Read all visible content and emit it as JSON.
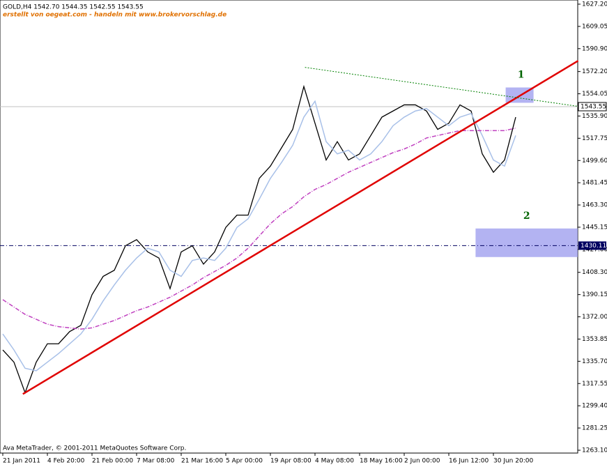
{
  "chart_data": {
    "type": "line",
    "title": "GOLD,H4  1542.70 1544.35 1542.55 1543.55",
    "subtitle": "erstellt von oegeat.com - handeln mit www.brokervorschlag.de",
    "footer": "Ava MetaTrader, © 2001-2011 MetaQuotes Software Corp.",
    "categories": [
      "21 Jan 2011",
      null,
      null,
      null,
      "4 Feb 20:00",
      null,
      null,
      null,
      "21 Feb 00:00",
      null,
      null,
      null,
      "7 Mar 08:00",
      null,
      null,
      null,
      "21 Mar 16:00",
      null,
      null,
      null,
      "5 Apr 00:00",
      null,
      null,
      null,
      "19 Apr 08:00",
      null,
      null,
      null,
      "4 May 08:00",
      null,
      null,
      null,
      "18 May 16:00",
      null,
      null,
      null,
      "2 Jun 00:00",
      null,
      null,
      null,
      "16 Jun 12:00",
      null,
      null,
      null,
      "30 Jun 20:00",
      null,
      null
    ],
    "series": [
      {
        "color": "#000000",
        "values": [
          1345,
          1335,
          1310,
          1335,
          1350,
          1350,
          1360,
          1365,
          1390,
          1405,
          1410,
          1430,
          1435,
          1425,
          1420,
          1395,
          1425,
          1430,
          1415,
          1425,
          1445,
          1455,
          1455,
          1485,
          1495,
          1510,
          1525,
          1560,
          1530,
          1500,
          1515,
          1500,
          1505,
          1520,
          1535,
          1540,
          1545,
          1545,
          1540,
          1525,
          1530,
          1545,
          1540,
          1505,
          1490,
          1500,
          1535
        ]
      },
      {
        "color": "#a8c0e8",
        "values": [
          1358,
          1345,
          1330,
          1328,
          1335,
          1342,
          1350,
          1358,
          1370,
          1385,
          1398,
          1410,
          1420,
          1428,
          1425,
          1410,
          1405,
          1418,
          1420,
          1418,
          1428,
          1445,
          1452,
          1468,
          1485,
          1498,
          1512,
          1535,
          1548,
          1515,
          1505,
          1508,
          1500,
          1505,
          1515,
          1528,
          1535,
          1540,
          1542,
          1535,
          1528,
          1535,
          1538,
          1520,
          1500,
          1495,
          1520
        ]
      },
      {
        "color": "#c040c0",
        "values": [
          1386,
          1380,
          1374,
          1370,
          1366,
          1364,
          1363,
          1362,
          1363,
          1366,
          1369,
          1373,
          1377,
          1380,
          1384,
          1388,
          1393,
          1398,
          1404,
          1409,
          1414,
          1420,
          1428,
          1438,
          1448,
          1456,
          1462,
          1470,
          1476,
          1480,
          1485,
          1490,
          1494,
          1498,
          1502,
          1506,
          1509,
          1513,
          1518,
          1520,
          1522,
          1524,
          1524,
          1524,
          1524,
          1524,
          1526
        ]
      }
    ],
    "trendlines": [
      {
        "color": "#e00000",
        "x": [
          1.8,
          51.6
        ],
        "values": [
          1309,
          1581
        ]
      },
      {
        "color": "#008000",
        "x": [
          27.1,
          51.6
        ],
        "values": [
          1575.6,
          1543.8
        ]
      }
    ],
    "zones": [
      {
        "label": "1",
        "color": "#9999ee",
        "x": [
          45.1,
          47.6
        ],
        "values": [
          1559.2,
          1546.7
        ]
      },
      {
        "label": "2",
        "color": "#9999ee",
        "x": [
          42.4,
          51.6
        ],
        "values": [
          1444.1,
          1420.8
        ]
      }
    ],
    "current_price": 1543.55,
    "level": 1430.11,
    "ylim": [
      1260.8,
      1630.6
    ],
    "yticks": [
      {
        "value": 1627.2,
        "label": "1627.20"
      },
      {
        "value": 1609.05,
        "label": "1609.05"
      },
      {
        "value": 1590.9,
        "label": "1590.90"
      },
      {
        "value": 1572.2,
        "label": "1572.20"
      },
      {
        "value": 1554.05,
        "label": "1554.05"
      },
      {
        "value": 1535.9,
        "label": "1535.90"
      },
      {
        "value": 1517.75,
        "label": "1517.75"
      },
      {
        "value": 1499.6,
        "label": "1499.60"
      },
      {
        "value": 1481.45,
        "label": "1481.45"
      },
      {
        "value": 1463.3,
        "label": "1463.30"
      },
      {
        "value": 1445.15,
        "label": "1445.15"
      },
      {
        "value": 1427.0,
        "label": "1427.00"
      },
      {
        "value": 1408.3,
        "label": "1408.30"
      },
      {
        "value": 1390.15,
        "label": "1390.15"
      },
      {
        "value": 1372.0,
        "label": "1372.00"
      },
      {
        "value": 1353.85,
        "label": "1353.85"
      },
      {
        "value": 1335.7,
        "label": "1335.70"
      },
      {
        "value": 1317.55,
        "label": "1317.55"
      },
      {
        "value": 1299.4,
        "label": "1299.40"
      },
      {
        "value": 1281.25,
        "label": "1281.25"
      },
      {
        "value": 1263.1,
        "label": "1263.10"
      }
    ]
  }
}
